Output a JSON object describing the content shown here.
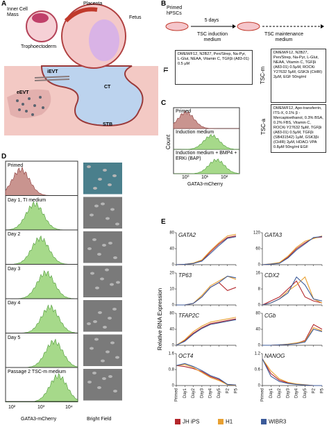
{
  "panel_a": {
    "label": "A",
    "inner_cell_mass": "Inner Cell Mass",
    "trophoectoderm": "Trophoectoderm",
    "placenta": "Placenta",
    "fetus": "Fetus",
    "ievt": "iEVT",
    "eevt": "eEVT",
    "ct": "CT",
    "stb": "STB"
  },
  "panel_b": {
    "label": "B",
    "start": "Primed hPSCs",
    "duration": "5 days",
    "step1": "TSC induction medium",
    "step2": "TSC maintenance medium",
    "ti": {
      "label": "TI",
      "recipe": "DMEM/F12, N2B27, Pen/Strep, Na-Pyr, L-Glut, NEAA, Vitamin C, TGFβi (A83-01) 0.5 μM"
    },
    "tsc_m": {
      "label": "TSC-m",
      "recipe": "DMEM/F12, N2B27, Pen/Strep, Na-Pyr, L-Glut, NEAA, Vitamin C, TGFβi (A83-01) 0.5μM, ROCKi Y27632 5μM, GSK3i (CHIR) 2μM, EGF 50ng/ml"
    },
    "tsc_a": {
      "label": "TSC-a",
      "recipe": "DMEM/F12, Apo-transferrin, ITS-X, 0.1% β -Mercaptoethanol, 0.3% BSA, 0.2% FBS, Vitamin C, ROCKi Y27632 5μM, TGFβi (A83-01) 0.5μM, TGFβi (SB431542) 1μM, GSK3βi (CHIR) 2μM, HDACi VPA 0.8μM 50ng/ml EGF"
    }
  },
  "panel_c": {
    "label": "C",
    "rows": [
      "Primed",
      "Induction medium",
      "Induction medium + BMP4 + ERKi (BAP)"
    ],
    "ylabel": "Count",
    "xlabel": "GATA3-mCherry",
    "xticks": [
      "10⁰",
      "10¹",
      "10²"
    ]
  },
  "panel_d": {
    "label": "D",
    "rows": [
      "Primed",
      "Day 1, TI medium",
      "Day 2",
      "Day 3",
      "Day 4",
      "Day 5",
      "Passage 2 TSC-m medium"
    ],
    "xticks": [
      "10²",
      "10³",
      "10⁴"
    ],
    "xlabel": "GATA3-mCherry",
    "image_label": "Bright Field"
  },
  "panel_e": {
    "label": "E",
    "ylabel": "Relative RNA Expression"
  },
  "chart_data": [
    {
      "type": "line",
      "title": "GATA2",
      "ylim": [
        0,
        80
      ],
      "yticks": [
        0,
        40,
        80
      ],
      "series": [
        {
          "name": "JH iPS",
          "color": "#b3262b",
          "values": [
            0,
            1,
            3,
            10,
            32,
            52,
            68,
            72
          ]
        },
        {
          "name": "H1",
          "color": "#e8a032",
          "values": [
            0,
            1,
            4,
            12,
            35,
            55,
            72,
            76
          ]
        },
        {
          "name": "WIBR3",
          "color": "#3b5a99",
          "values": [
            0,
            1,
            3,
            9,
            28,
            48,
            66,
            70
          ]
        }
      ]
    },
    {
      "type": "line",
      "title": "GATA3",
      "ylim": [
        0,
        120
      ],
      "yticks": [
        0,
        60,
        120
      ],
      "series": [
        {
          "name": "JH iPS",
          "color": "#b3262b",
          "values": [
            0,
            2,
            6,
            28,
            60,
            82,
            100,
            104
          ]
        },
        {
          "name": "H1",
          "color": "#e8a032",
          "values": [
            0,
            3,
            8,
            32,
            65,
            88,
            98,
            108
          ]
        },
        {
          "name": "WIBR3",
          "color": "#3b5a99",
          "values": [
            0,
            2,
            5,
            25,
            55,
            78,
            102,
            106
          ]
        }
      ]
    },
    {
      "type": "line",
      "title": "TP63",
      "ylim": [
        0,
        20
      ],
      "yticks": [
        0,
        10,
        20
      ],
      "series": [
        {
          "name": "JH iPS",
          "color": "#b3262b",
          "values": [
            0,
            0,
            1,
            5,
            11,
            14,
            9,
            11
          ]
        },
        {
          "name": "H1",
          "color": "#e8a032",
          "values": [
            0,
            0,
            1,
            6,
            12,
            15,
            18,
            16
          ]
        },
        {
          "name": "WIBR3",
          "color": "#3b5a99",
          "values": [
            0,
            0,
            1,
            5,
            11,
            14,
            18,
            17
          ]
        }
      ]
    },
    {
      "type": "line",
      "title": "CDX2",
      "ylim": [
        0,
        16
      ],
      "yticks": [
        0,
        8,
        16
      ],
      "series": [
        {
          "name": "JH iPS",
          "color": "#b3262b",
          "values": [
            0,
            2,
            4,
            8,
            12,
            4,
            2,
            1
          ]
        },
        {
          "name": "H1",
          "color": "#e8a032",
          "values": [
            0,
            1,
            3,
            7,
            10,
            14,
            3,
            1
          ]
        },
        {
          "name": "WIBR3",
          "color": "#3b5a99",
          "values": [
            0,
            1,
            3,
            6,
            14,
            10,
            3,
            2
          ]
        }
      ]
    },
    {
      "type": "line",
      "title": "TFAP2C",
      "ylim": [
        0,
        80
      ],
      "yticks": [
        0,
        40,
        80
      ],
      "series": [
        {
          "name": "JH iPS",
          "color": "#b3262b",
          "values": [
            0,
            12,
            30,
            44,
            54,
            58,
            62,
            66
          ]
        },
        {
          "name": "H1",
          "color": "#e8a032",
          "values": [
            0,
            14,
            34,
            48,
            58,
            62,
            66,
            70
          ]
        },
        {
          "name": "WIBR3",
          "color": "#3b5a99",
          "values": [
            0,
            10,
            28,
            42,
            52,
            56,
            60,
            64
          ]
        }
      ]
    },
    {
      "type": "line",
      "title": "CGb",
      "ylim": [
        0,
        80
      ],
      "yticks": [
        0,
        40,
        80
      ],
      "series": [
        {
          "name": "JH iPS",
          "color": "#b3262b",
          "values": [
            0,
            0,
            1,
            2,
            5,
            12,
            52,
            40
          ]
        },
        {
          "name": "H1",
          "color": "#e8a032",
          "values": [
            0,
            0,
            1,
            3,
            6,
            10,
            44,
            36
          ]
        },
        {
          "name": "WIBR3",
          "color": "#3b5a99",
          "values": [
            0,
            0,
            1,
            2,
            4,
            8,
            40,
            34
          ]
        }
      ]
    },
    {
      "type": "line",
      "title": "OCT4",
      "ylim": [
        0,
        1.6
      ],
      "yticks": [
        0,
        0.8,
        1.6
      ],
      "categories": [
        "Primed",
        "Day1",
        "Day2",
        "Day3",
        "Day4",
        "Day5",
        "P2",
        "P5"
      ],
      "series": [
        {
          "name": "JH iPS",
          "color": "#b3262b",
          "values": [
            1,
            0.95,
            0.85,
            0.7,
            0.45,
            0.3,
            0.05,
            0.02
          ]
        },
        {
          "name": "H1",
          "color": "#e8a032",
          "values": [
            1,
            1.05,
            0.9,
            0.65,
            0.4,
            0.25,
            0.04,
            0.02
          ]
        },
        {
          "name": "WIBR3",
          "color": "#3b5a99",
          "values": [
            1,
            1.1,
            0.95,
            0.75,
            0.5,
            0.35,
            0.06,
            0.03
          ]
        }
      ]
    },
    {
      "type": "line",
      "title": "NANOG",
      "ylim": [
        0,
        1.2
      ],
      "yticks": [
        0,
        0.6,
        1.2
      ],
      "categories": [
        "Primed",
        "Day1",
        "Day2",
        "Day3",
        "Day4",
        "Day5",
        "P2",
        "P5"
      ],
      "series": [
        {
          "name": "JH iPS",
          "color": "#b3262b",
          "values": [
            1,
            0.45,
            0.2,
            0.1,
            0.05,
            0.02,
            0,
            0
          ]
        },
        {
          "name": "H1",
          "color": "#e8a032",
          "values": [
            1,
            0.55,
            0.25,
            0.12,
            0.06,
            0.03,
            0,
            0
          ]
        },
        {
          "name": "WIBR3",
          "color": "#3b5a99",
          "values": [
            1,
            0.35,
            0.15,
            0.08,
            0.04,
            0.02,
            0,
            0
          ]
        }
      ]
    }
  ]
}
